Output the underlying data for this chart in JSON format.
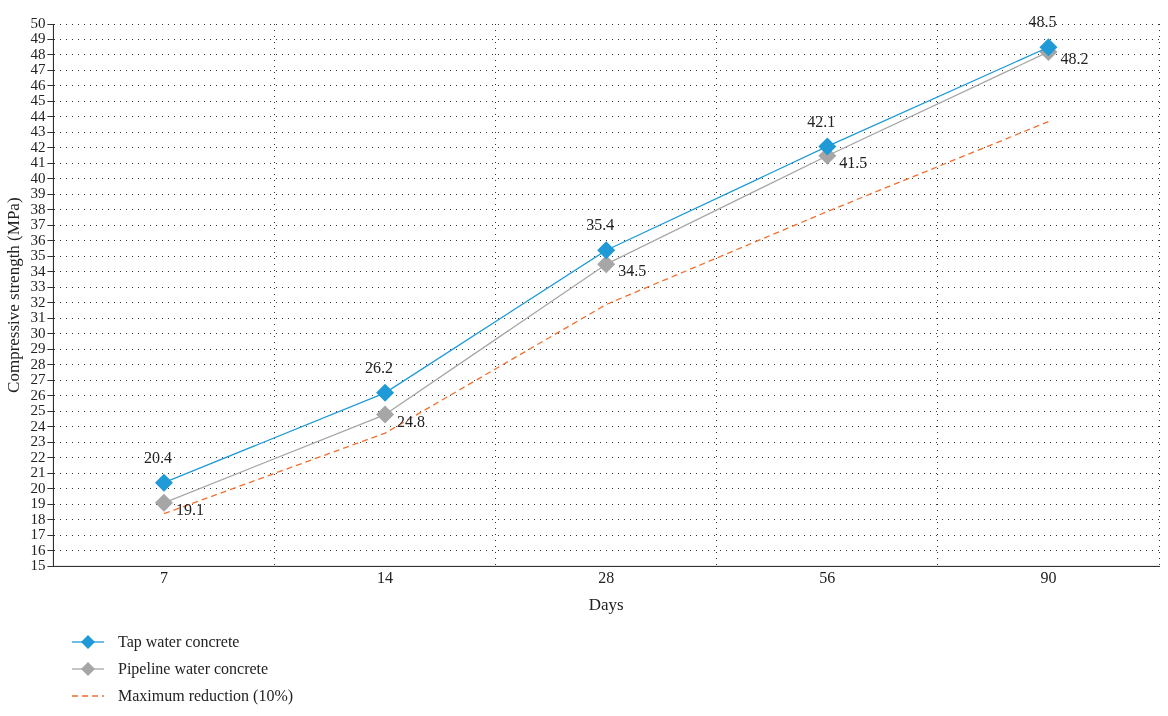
{
  "chart_data": {
    "type": "line",
    "xlabel": "Days",
    "ylabel": "Compressive strength (MPa)",
    "categories": [
      "7",
      "14",
      "28",
      "56",
      "90"
    ],
    "series": [
      {
        "name": "Tap water concrete",
        "color": "#1f9ad6",
        "values": [
          20.4,
          26.2,
          35.4,
          42.1,
          48.5
        ],
        "value_labels": [
          "20.4",
          "26.2",
          "35.4",
          "42.1",
          "48.5"
        ],
        "marker": "diamond",
        "line_style": "solid"
      },
      {
        "name": "Pipeline water concrete",
        "color": "#a6a6a6",
        "values": [
          19.1,
          24.8,
          34.5,
          41.5,
          48.2
        ],
        "value_labels": [
          "19.1",
          "24.8",
          "34.5",
          "41.5",
          "48.2"
        ],
        "marker": "diamond",
        "line_style": "solid"
      },
      {
        "name": "Maximum reduction (10%)",
        "color": "#f07030",
        "values": [
          18.4,
          23.6,
          31.9,
          37.9,
          43.7
        ],
        "marker": "none",
        "line_style": "dashed"
      }
    ],
    "ylim": [
      15,
      50
    ],
    "yticks": [
      15,
      16,
      17,
      18,
      19,
      20,
      21,
      22,
      23,
      24,
      25,
      26,
      27,
      28,
      29,
      30,
      31,
      32,
      33,
      34,
      35,
      36,
      37,
      38,
      39,
      40,
      41,
      42,
      43,
      44,
      45,
      46,
      47,
      48,
      49,
      50
    ],
    "grid": true,
    "legend": "bottom left"
  }
}
